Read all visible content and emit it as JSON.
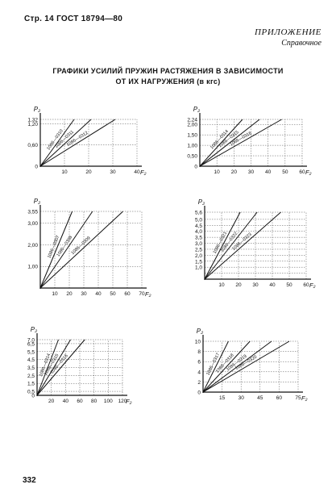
{
  "header": {
    "left": "Стр. 14  ГОСТ 18794—80",
    "appendix": "ПРИЛОЖЕНИЕ",
    "note": "Справочное"
  },
  "title": {
    "line1": "ГРАФИКИ УСИЛИЙ ПРУЖИН РАСТЯЖЕНИЯ В ЗАВИСИМОСТИ",
    "line2": "ОТ ИХ НАГРУЖЕНИЯ (в кгс)"
  },
  "page_number": "332",
  "chart_data": [
    {
      "type": "line",
      "ylabel": "P₂",
      "xlabel": "F₂",
      "xlim": [
        0,
        40
      ],
      "ylim": [
        0,
        1.32
      ],
      "x_ticks": [
        0,
        10,
        20,
        30,
        40
      ],
      "x_tick_labels": [
        "",
        "10",
        "20",
        "30",
        "40"
      ],
      "y_ticks": [
        0,
        0.6,
        1.2,
        1.32
      ],
      "y_tick_labels": [
        "0",
        "0,60",
        "1,20",
        "1,32"
      ],
      "series": [
        {
          "name": "1086—0310",
          "x": [
            0,
            14
          ],
          "y": [
            0,
            1.32
          ]
        },
        {
          "name": "1086—0311",
          "x": [
            0,
            21
          ],
          "y": [
            0,
            1.32
          ]
        },
        {
          "name": "1086—0312",
          "x": [
            0,
            31
          ],
          "y": [
            0,
            1.32
          ]
        }
      ]
    },
    {
      "type": "line",
      "ylabel": "P₂",
      "xlabel": "F₂",
      "xlim": [
        0,
        60
      ],
      "ylim": [
        0,
        2.24
      ],
      "x_ticks": [
        0,
        10,
        20,
        30,
        40,
        50,
        60
      ],
      "x_tick_labels": [
        "",
        "10",
        "20",
        "30",
        "40",
        "50",
        "60"
      ],
      "y_ticks": [
        0,
        0.5,
        1,
        1.5,
        2,
        2.24
      ],
      "y_tick_labels": [
        "0",
        "0,50",
        "1,00",
        "1,50",
        "2,00",
        "2,24"
      ],
      "series": [
        {
          "name": "1086—0314",
          "x": [
            0,
            25
          ],
          "y": [
            0,
            2.24
          ]
        },
        {
          "name": "1086—0315",
          "x": [
            0,
            35
          ],
          "y": [
            0,
            2.24
          ]
        },
        {
          "name": "1086—0316",
          "x": [
            0,
            48
          ],
          "y": [
            0,
            2.24
          ]
        }
      ]
    },
    {
      "type": "line",
      "ylabel": "P₂",
      "xlabel": "F₂",
      "xlim": [
        0,
        70
      ],
      "ylim": [
        0,
        3.55
      ],
      "x_ticks": [
        0,
        10,
        20,
        30,
        40,
        50,
        60,
        70
      ],
      "x_tick_labels": [
        "",
        "10",
        "20",
        "30",
        "40",
        "50",
        "60",
        "70"
      ],
      "y_ticks": [
        0,
        1,
        2,
        3,
        3.55
      ],
      "y_tick_labels": [
        "",
        "1,00",
        "2,00",
        "3,00",
        "3,55"
      ],
      "series": [
        {
          "name": "1086—0307",
          "x": [
            0,
            22
          ],
          "y": [
            0,
            3.55
          ]
        },
        {
          "name": "1086—0308",
          "x": [
            0,
            36
          ],
          "y": [
            0,
            3.55
          ]
        },
        {
          "name": "1086—0309",
          "x": [
            0,
            57
          ],
          "y": [
            0,
            3.55
          ]
        }
      ]
    },
    {
      "type": "line",
      "ylabel": "P₂",
      "xlabel": "F₂",
      "xlim": [
        0,
        60
      ],
      "ylim": [
        0,
        5.6
      ],
      "x_ticks": [
        0,
        10,
        20,
        30,
        40,
        50,
        60
      ],
      "x_tick_labels": [
        "",
        "10",
        "20",
        "30",
        "40",
        "50",
        "60"
      ],
      "y_ticks": [
        0,
        0.5,
        1,
        1.5,
        2,
        2.5,
        3,
        3.5,
        4,
        4.5,
        5,
        5.6
      ],
      "y_tick_labels": [
        "",
        "",
        "1,0",
        "1,5",
        "2,0",
        "2,5",
        "3,0",
        "3,5",
        "4,0",
        "4,5",
        "5,0",
        "5,6"
      ],
      "series": [
        {
          "name": "1086—0321",
          "x": [
            0,
            21
          ],
          "y": [
            0,
            5.6
          ]
        },
        {
          "name": "1086—0322",
          "x": [
            0,
            31
          ],
          "y": [
            0,
            5.6
          ]
        },
        {
          "name": "1086—0323",
          "x": [
            0,
            45
          ],
          "y": [
            0,
            5.6
          ]
        }
      ]
    },
    {
      "type": "line",
      "ylabel": "P₂",
      "xlabel": "F₂",
      "xlim": [
        0,
        120
      ],
      "ylim": [
        0,
        7
      ],
      "x_ticks": [
        0,
        20,
        40,
        60,
        80,
        100,
        120
      ],
      "x_tick_labels": [
        "",
        "20",
        "40",
        "60",
        "80",
        "100",
        "120"
      ],
      "y_ticks": [
        0,
        0.5,
        1.5,
        2.5,
        3.5,
        4.5,
        5.5,
        6.5,
        7
      ],
      "y_tick_labels": [
        "0",
        "0,5",
        "1,5",
        "2,5",
        "3,5",
        "4,5",
        "5,5",
        "6,5",
        "7,0"
      ],
      "series": [
        {
          "name": "1086—0314",
          "x": [
            0,
            30
          ],
          "y": [
            0,
            7
          ]
        },
        {
          "name": "1086—0315",
          "x": [
            0,
            47
          ],
          "y": [
            0,
            7
          ]
        },
        {
          "name": "1086—0316",
          "x": [
            0,
            67
          ],
          "y": [
            0,
            7
          ]
        }
      ]
    },
    {
      "type": "line",
      "ylabel": "P₂",
      "xlabel": "F₂",
      "xlim": [
        0,
        75
      ],
      "ylim": [
        0,
        10
      ],
      "x_ticks": [
        0,
        15,
        30,
        45,
        60,
        75
      ],
      "x_tick_labels": [
        "",
        "15",
        "30",
        "45",
        "60",
        "75"
      ],
      "y_ticks": [
        0,
        2,
        4,
        6,
        8,
        10
      ],
      "y_tick_labels": [
        "0",
        "2",
        "4",
        "6",
        "8",
        "10"
      ],
      "series": [
        {
          "name": "1086—0317",
          "x": [
            0,
            20
          ],
          "y": [
            0,
            10
          ]
        },
        {
          "name": "1086—0318",
          "x": [
            0,
            37
          ],
          "y": [
            0,
            10
          ]
        },
        {
          "name": "1086—0319",
          "x": [
            0,
            54
          ],
          "y": [
            0,
            10
          ]
        },
        {
          "name": "1086—0320",
          "x": [
            0,
            68
          ],
          "y": [
            0,
            10
          ]
        }
      ]
    }
  ]
}
